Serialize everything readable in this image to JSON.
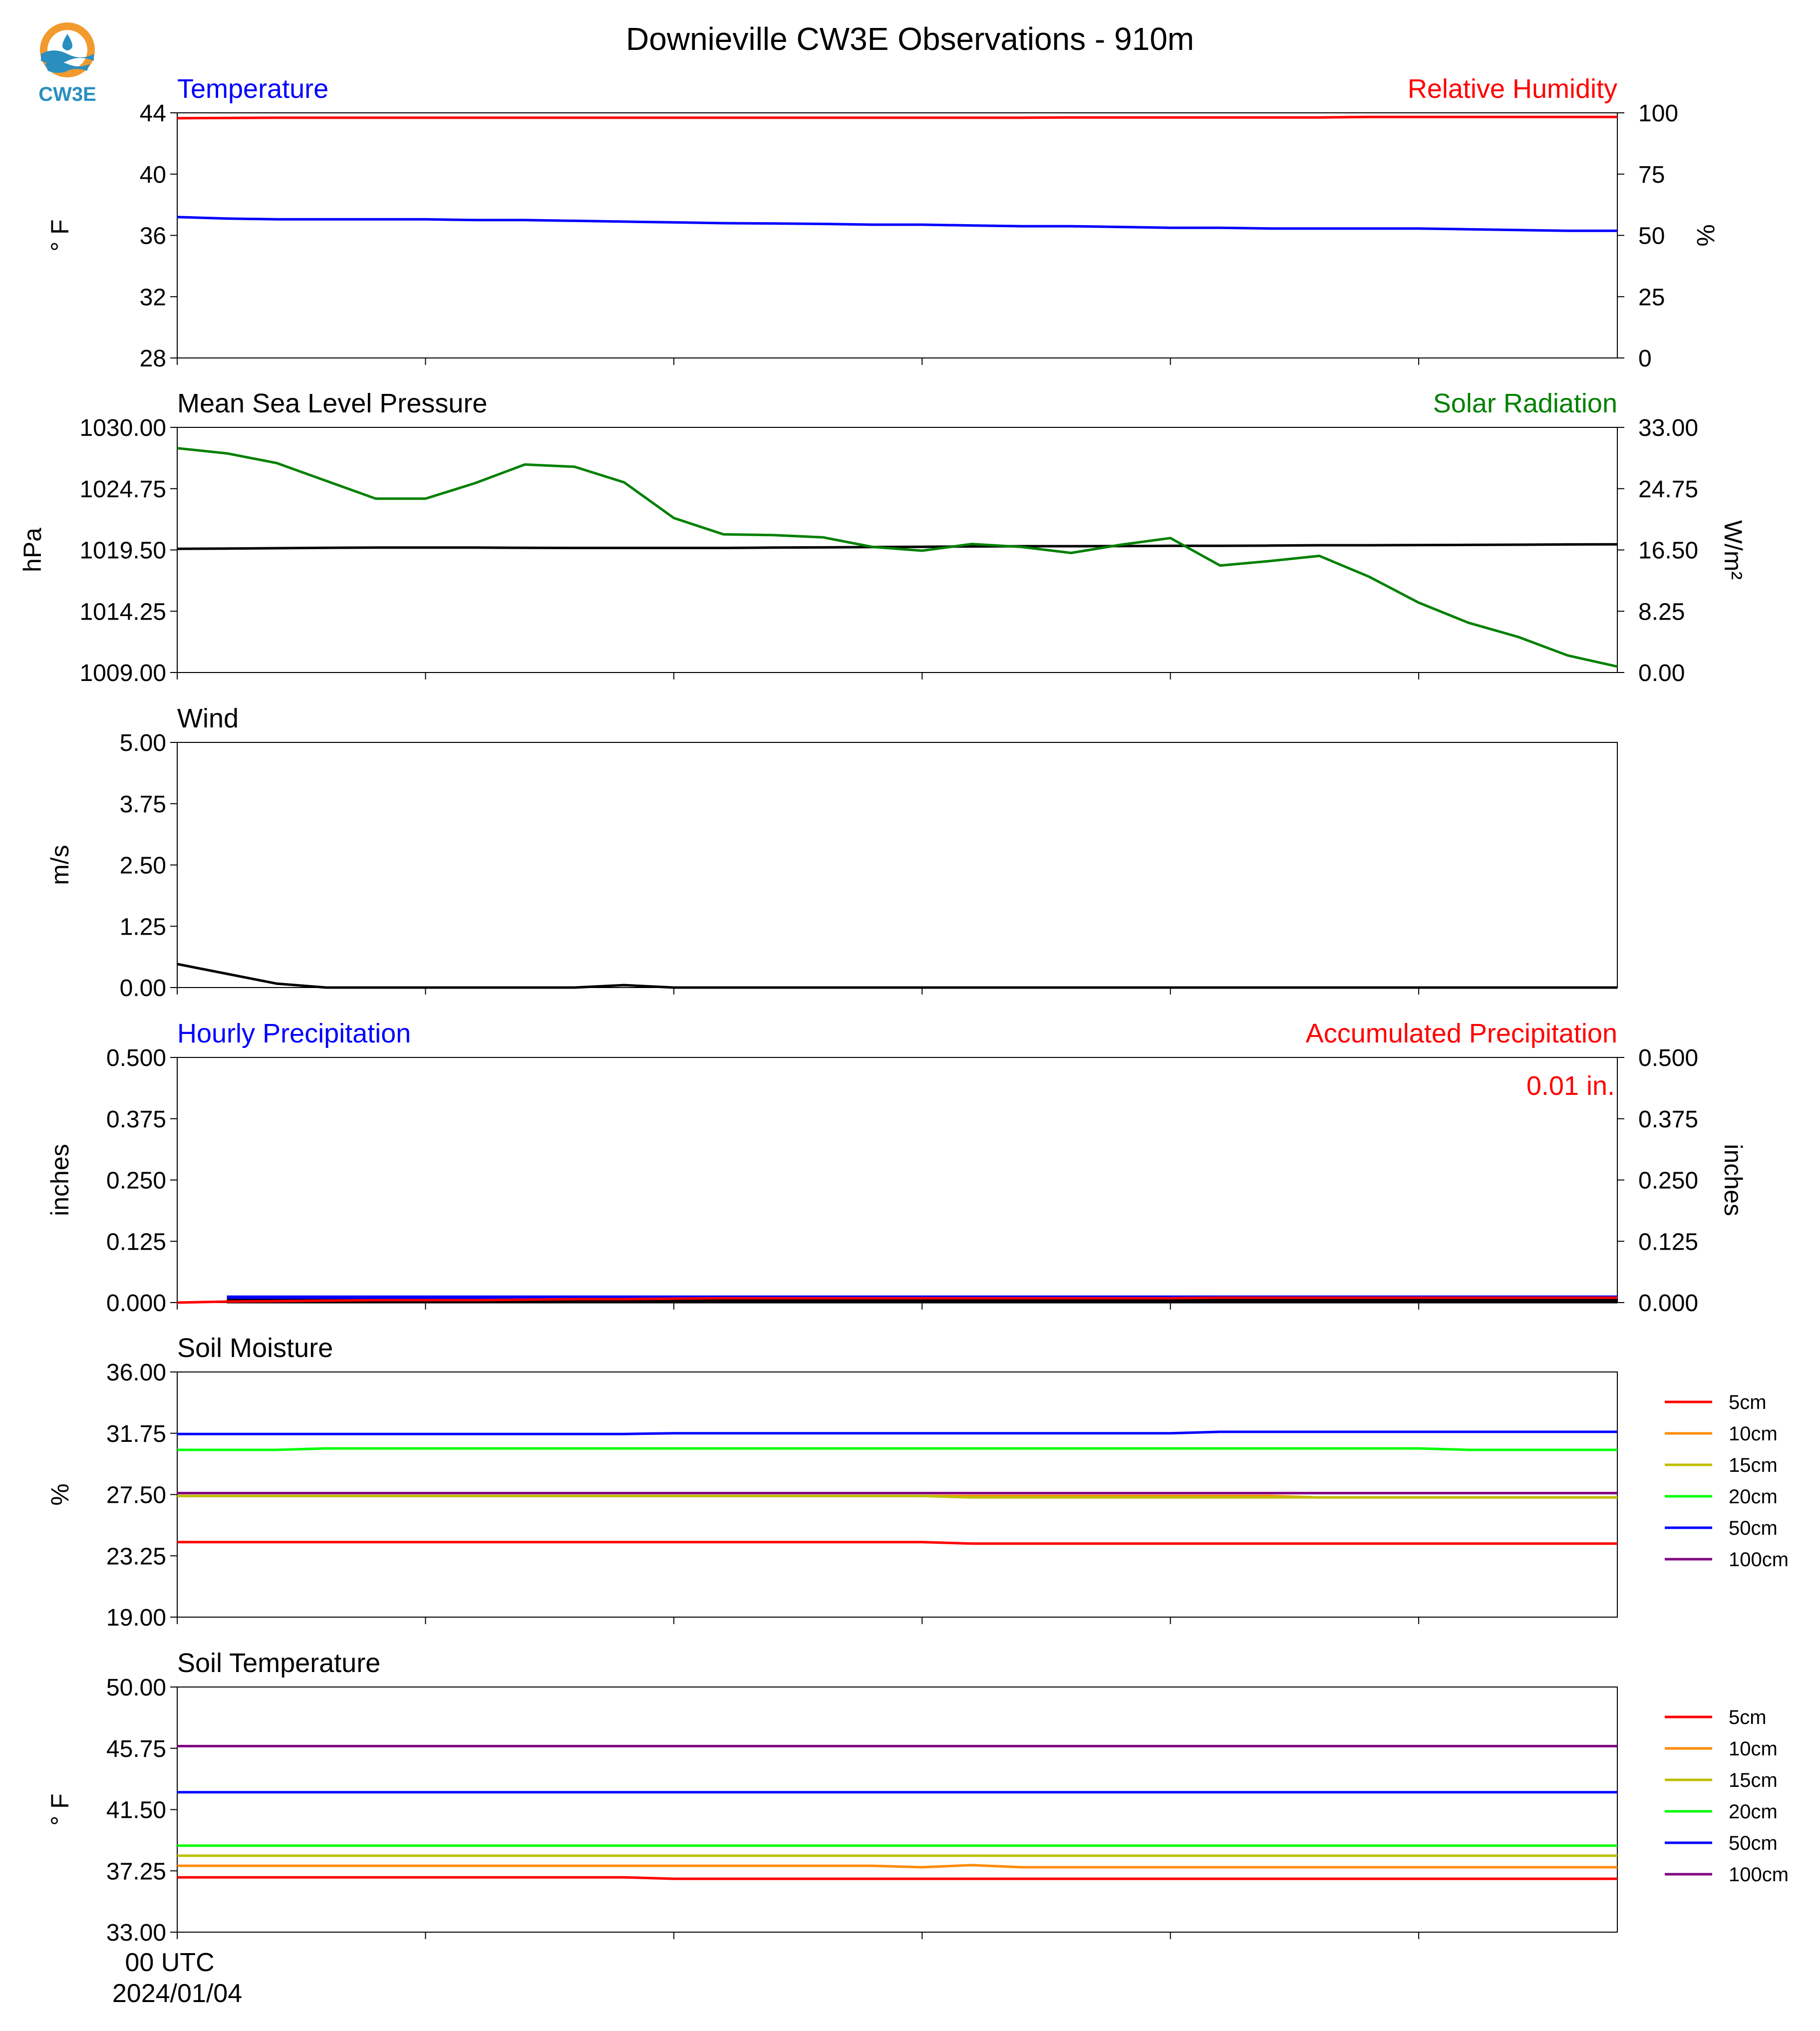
{
  "title": "Downieville CW3E Observations - 910m",
  "logo": {
    "text": "CW3E",
    "color": "#2a8fbf",
    "accent": "#f29a2e"
  },
  "chart_data": [
    {
      "type": "line",
      "panel": "temperature",
      "title_left": "Temperature",
      "title_right": "Relative Humidity",
      "ylabel": "° F",
      "ylabel_right": "%",
      "ylim": [
        28,
        44
      ],
      "ylim_right": [
        0,
        100
      ],
      "yticks": [
        "28",
        "32",
        "36",
        "40",
        "44"
      ],
      "yticks_right": [
        "0",
        "25",
        "50",
        "75",
        "100"
      ],
      "x": [
        0,
        1,
        2,
        3,
        4,
        5,
        6,
        7,
        8,
        9,
        10,
        11,
        12,
        13,
        14,
        15,
        16,
        17,
        18,
        19,
        20,
        21,
        22,
        23,
        24,
        25,
        26,
        27,
        28,
        29
      ],
      "series": [
        {
          "name": "Temperature",
          "axis": "left",
          "color": "#0000ff",
          "values": [
            37.2,
            37.1,
            37.05,
            37.05,
            37.05,
            37.05,
            37.0,
            37.0,
            36.95,
            36.9,
            36.85,
            36.8,
            36.78,
            36.75,
            36.7,
            36.7,
            36.65,
            36.6,
            36.6,
            36.55,
            36.5,
            36.5,
            36.45,
            36.45,
            36.45,
            36.45,
            36.4,
            36.35,
            36.3,
            36.3
          ]
        },
        {
          "name": "Relative Humidity",
          "axis": "right",
          "color": "#ff0000",
          "values": [
            97.8,
            97.9,
            98.0,
            98.0,
            98.0,
            98.0,
            98.0,
            98.0,
            98.0,
            98.0,
            98.0,
            98.0,
            98.0,
            98.0,
            98.0,
            98.0,
            98.0,
            98.0,
            98.1,
            98.1,
            98.1,
            98.1,
            98.1,
            98.1,
            98.3,
            98.3,
            98.3,
            98.3,
            98.3,
            98.3
          ]
        }
      ]
    },
    {
      "type": "line",
      "panel": "pressure",
      "title_left": "Mean Sea Level Pressure",
      "title_right": "Solar Radiation",
      "ylabel": "hPa",
      "ylabel_right": "W/m²",
      "ylim": [
        1009,
        1030
      ],
      "ylim_right": [
        0,
        33
      ],
      "yticks": [
        "1009.00",
        "1014.25",
        "1019.50",
        "1024.75",
        "1030.00"
      ],
      "yticks_right": [
        "0.00",
        "8.25",
        "16.50",
        "24.75",
        "33.00"
      ],
      "x": [
        0,
        1,
        2,
        3,
        4,
        5,
        6,
        7,
        8,
        9,
        10,
        11,
        12,
        13,
        14,
        15,
        16,
        17,
        18,
        19,
        20,
        21,
        22,
        23,
        24,
        25,
        26,
        27,
        28,
        29
      ],
      "series": [
        {
          "name": "Mean Sea Level Pressure",
          "axis": "left",
          "color": "#000000",
          "values": [
            1019.6,
            1019.62,
            1019.65,
            1019.68,
            1019.7,
            1019.7,
            1019.7,
            1019.68,
            1019.67,
            1019.67,
            1019.67,
            1019.67,
            1019.7,
            1019.72,
            1019.75,
            1019.77,
            1019.8,
            1019.82,
            1019.82,
            1019.83,
            1019.85,
            1019.85,
            1019.87,
            1019.9,
            1019.9,
            1019.92,
            1019.93,
            1019.95,
            1019.97,
            1019.98
          ]
        },
        {
          "name": "Solar Radiation",
          "axis": "right",
          "color": "#008000",
          "values": [
            30.2,
            29.5,
            28.2,
            25.8,
            23.4,
            23.4,
            25.5,
            28.0,
            27.7,
            25.6,
            20.8,
            18.6,
            18.5,
            18.2,
            16.9,
            16.4,
            17.3,
            16.9,
            16.1,
            17.2,
            18.1,
            14.4,
            15.0,
            15.7,
            12.9,
            9.4,
            6.7,
            4.8,
            2.3,
            0.8
          ]
        }
      ]
    },
    {
      "type": "line",
      "panel": "wind",
      "title_left": "Wind",
      "ylabel": "m/s",
      "ylim": [
        0,
        5
      ],
      "yticks": [
        "0.00",
        "1.25",
        "2.50",
        "3.75",
        "5.00"
      ],
      "x": [
        0,
        1,
        2,
        3,
        4,
        5,
        6,
        7,
        8,
        9,
        10,
        11,
        12,
        13,
        14,
        15,
        16,
        17,
        18,
        19,
        20,
        21,
        22,
        23,
        24,
        25,
        26,
        27,
        28,
        29
      ],
      "series": [
        {
          "name": "Wind",
          "axis": "left",
          "color": "#000000",
          "values": [
            0.48,
            0.28,
            0.08,
            0.0,
            0.0,
            0.0,
            0.0,
            0.0,
            0.0,
            0.05,
            0.0,
            0.0,
            0.0,
            0.0,
            0.0,
            0.0,
            0.0,
            0.0,
            0.0,
            0.0,
            0.0,
            0.0,
            0.0,
            0.0,
            0.0,
            0.0,
            0.0,
            0.0,
            0.0,
            0.0
          ]
        }
      ]
    },
    {
      "type": "line",
      "panel": "precipitation",
      "title_left": "Hourly Precipitation",
      "title_right": "Accumulated Precipitation",
      "annotation": "0.01 in.",
      "ylabel": "inches",
      "ylabel_right": "inches",
      "ylim": [
        0,
        0.5
      ],
      "ylim_right": [
        0,
        0.5
      ],
      "yticks": [
        "0.000",
        "0.125",
        "0.250",
        "0.375",
        "0.500"
      ],
      "yticks_right": [
        "0.000",
        "0.125",
        "0.250",
        "0.375",
        "0.500"
      ],
      "x": [
        0,
        1,
        2,
        3,
        4,
        5,
        6,
        7,
        8,
        9,
        10,
        11,
        12,
        13,
        14,
        15,
        16,
        17,
        18,
        19,
        20,
        21,
        22,
        23,
        24,
        25,
        26,
        27,
        28,
        29
      ],
      "series": [
        {
          "name": "Hourly Precipitation",
          "axis": "left",
          "color": "#0000ff",
          "values": [
            0,
            0.01,
            0.01,
            0.01,
            0.01,
            0.01,
            0.01,
            0.01,
            0.01,
            0.01,
            0.01,
            0.01,
            0.01,
            0.01,
            0.01,
            0.01,
            0.01,
            0.01,
            0.01,
            0.01,
            0.01,
            0.01,
            0.01,
            0.01,
            0.01,
            0.01,
            0.01,
            0.01,
            0.01,
            0.01
          ]
        },
        {
          "name": "Hourly Precipitation (zero)",
          "axis": "left",
          "color": "#000000",
          "values": [
            0,
            0.003,
            0.003,
            0.003,
            0.003,
            0.003,
            0.003,
            0.003,
            0.003,
            0.003,
            0.003,
            0.003,
            0.003,
            0.003,
            0.003,
            0.003,
            0.003,
            0.003,
            0.003,
            0.003,
            0.003,
            0.003,
            0.003,
            0.003,
            0.003,
            0.003,
            0.003,
            0.003,
            0.003,
            0.003
          ]
        },
        {
          "name": "Accumulated Precipitation",
          "axis": "right",
          "color": "#ff0000",
          "values": [
            0,
            0.002,
            0.003,
            0.004,
            0.005,
            0.005,
            0.005,
            0.006,
            0.007,
            0.007,
            0.008,
            0.009,
            0.009,
            0.009,
            0.009,
            0.009,
            0.009,
            0.009,
            0.009,
            0.009,
            0.009,
            0.01,
            0.01,
            0.01,
            0.01,
            0.01,
            0.01,
            0.01,
            0.01,
            0.01
          ]
        }
      ]
    },
    {
      "type": "line",
      "panel": "soil_moisture",
      "title_left": "Soil Moisture",
      "ylabel": "%",
      "ylim": [
        19,
        36
      ],
      "yticks": [
        "19.00",
        "23.25",
        "27.50",
        "31.75",
        "36.00"
      ],
      "legend": "right",
      "x": [
        0,
        1,
        2,
        3,
        4,
        5,
        6,
        7,
        8,
        9,
        10,
        11,
        12,
        13,
        14,
        15,
        16,
        17,
        18,
        19,
        20,
        21,
        22,
        23,
        24,
        25,
        26,
        27,
        28,
        29
      ],
      "series": [
        {
          "name": "5cm",
          "color": "#ff0000",
          "values": [
            24.2,
            24.2,
            24.2,
            24.2,
            24.2,
            24.2,
            24.2,
            24.2,
            24.2,
            24.2,
            24.2,
            24.2,
            24.2,
            24.2,
            24.2,
            24.2,
            24.1,
            24.1,
            24.1,
            24.1,
            24.1,
            24.1,
            24.1,
            24.1,
            24.1,
            24.1,
            24.1,
            24.1,
            24.1,
            24.1
          ]
        },
        {
          "name": "10cm",
          "color": "#ff8c00",
          "values": [
            27.4,
            27.4,
            27.4,
            27.4,
            27.4,
            27.4,
            27.4,
            27.4,
            27.4,
            27.4,
            27.4,
            27.4,
            27.4,
            27.4,
            27.4,
            27.4,
            27.4,
            27.4,
            27.4,
            27.4,
            27.4,
            27.4,
            27.4,
            27.3,
            27.3,
            27.3,
            27.3,
            27.3,
            27.3,
            27.3
          ]
        },
        {
          "name": "15cm",
          "color": "#bfbf00",
          "values": [
            27.4,
            27.4,
            27.4,
            27.4,
            27.4,
            27.4,
            27.4,
            27.4,
            27.4,
            27.4,
            27.4,
            27.4,
            27.4,
            27.4,
            27.4,
            27.4,
            27.3,
            27.3,
            27.3,
            27.3,
            27.3,
            27.3,
            27.3,
            27.3,
            27.3,
            27.3,
            27.3,
            27.3,
            27.3,
            27.3
          ]
        },
        {
          "name": "20cm",
          "color": "#00ff00",
          "values": [
            30.6,
            30.6,
            30.6,
            30.7,
            30.7,
            30.7,
            30.7,
            30.7,
            30.7,
            30.7,
            30.7,
            30.7,
            30.7,
            30.7,
            30.7,
            30.7,
            30.7,
            30.7,
            30.7,
            30.7,
            30.7,
            30.7,
            30.7,
            30.7,
            30.7,
            30.7,
            30.6,
            30.6,
            30.6,
            30.6
          ]
        },
        {
          "name": "50cm",
          "color": "#0000ff",
          "values": [
            31.7,
            31.7,
            31.7,
            31.7,
            31.7,
            31.7,
            31.7,
            31.7,
            31.7,
            31.7,
            31.75,
            31.75,
            31.75,
            31.75,
            31.75,
            31.75,
            31.75,
            31.75,
            31.75,
            31.75,
            31.75,
            31.85,
            31.85,
            31.85,
            31.85,
            31.85,
            31.85,
            31.85,
            31.85,
            31.85
          ]
        },
        {
          "name": "100cm",
          "color": "#800080",
          "values": [
            27.6,
            27.6,
            27.6,
            27.6,
            27.6,
            27.6,
            27.6,
            27.6,
            27.6,
            27.6,
            27.6,
            27.6,
            27.6,
            27.6,
            27.6,
            27.6,
            27.6,
            27.6,
            27.6,
            27.6,
            27.6,
            27.6,
            27.6,
            27.6,
            27.6,
            27.6,
            27.6,
            27.6,
            27.6,
            27.6
          ]
        }
      ]
    },
    {
      "type": "line",
      "panel": "soil_temperature",
      "title_left": "Soil Temperature",
      "ylabel": "° F",
      "ylim": [
        33,
        50
      ],
      "yticks": [
        "33.00",
        "37.25",
        "41.50",
        "45.75",
        "50.00"
      ],
      "legend": "right",
      "x": [
        0,
        1,
        2,
        3,
        4,
        5,
        6,
        7,
        8,
        9,
        10,
        11,
        12,
        13,
        14,
        15,
        16,
        17,
        18,
        19,
        20,
        21,
        22,
        23,
        24,
        25,
        26,
        27,
        28,
        29
      ],
      "series": [
        {
          "name": "5cm",
          "color": "#ff0000",
          "values": [
            36.8,
            36.8,
            36.8,
            36.8,
            36.8,
            36.8,
            36.8,
            36.8,
            36.8,
            36.8,
            36.7,
            36.7,
            36.7,
            36.7,
            36.7,
            36.7,
            36.7,
            36.7,
            36.7,
            36.7,
            36.7,
            36.7,
            36.7,
            36.7,
            36.7,
            36.7,
            36.7,
            36.7,
            36.7,
            36.7
          ]
        },
        {
          "name": "10cm",
          "color": "#ff8c00",
          "values": [
            37.6,
            37.6,
            37.6,
            37.6,
            37.6,
            37.6,
            37.6,
            37.6,
            37.6,
            37.6,
            37.6,
            37.6,
            37.6,
            37.6,
            37.6,
            37.5,
            37.65,
            37.5,
            37.5,
            37.5,
            37.5,
            37.5,
            37.5,
            37.5,
            37.5,
            37.5,
            37.5,
            37.5,
            37.5,
            37.5
          ]
        },
        {
          "name": "15cm",
          "color": "#bfbf00",
          "values": [
            38.3,
            38.3,
            38.3,
            38.3,
            38.3,
            38.3,
            38.3,
            38.3,
            38.3,
            38.3,
            38.3,
            38.3,
            38.3,
            38.3,
            38.3,
            38.3,
            38.3,
            38.3,
            38.3,
            38.3,
            38.3,
            38.3,
            38.3,
            38.3,
            38.3,
            38.3,
            38.3,
            38.3,
            38.3,
            38.3
          ]
        },
        {
          "name": "20cm",
          "color": "#00ff00",
          "values": [
            39.0,
            39.0,
            39.0,
            39.0,
            39.0,
            39.0,
            39.0,
            39.0,
            39.0,
            39.0,
            39.0,
            39.0,
            39.0,
            39.0,
            39.0,
            39.0,
            39.0,
            39.0,
            39.0,
            39.0,
            39.0,
            39.0,
            39.0,
            39.0,
            39.0,
            39.0,
            39.0,
            39.0,
            39.0,
            39.0
          ]
        },
        {
          "name": "50cm",
          "color": "#0000ff",
          "values": [
            42.7,
            42.7,
            42.7,
            42.7,
            42.7,
            42.7,
            42.7,
            42.7,
            42.7,
            42.7,
            42.7,
            42.7,
            42.7,
            42.7,
            42.7,
            42.7,
            42.7,
            42.7,
            42.7,
            42.7,
            42.7,
            42.7,
            42.7,
            42.7,
            42.7,
            42.7,
            42.7,
            42.7,
            42.7,
            42.7
          ]
        },
        {
          "name": "100cm",
          "color": "#800080",
          "values": [
            45.9,
            45.9,
            45.9,
            45.9,
            45.9,
            45.9,
            45.9,
            45.9,
            45.9,
            45.9,
            45.9,
            45.9,
            45.9,
            45.9,
            45.9,
            45.9,
            45.9,
            45.9,
            45.9,
            45.9,
            45.9,
            45.9,
            45.9,
            45.9,
            45.9,
            45.9,
            45.9,
            45.9,
            45.9,
            45.9
          ]
        }
      ]
    }
  ],
  "xaxis": {
    "xlim": [
      0,
      29
    ],
    "ticks": [
      0,
      5,
      10,
      15,
      20,
      25
    ],
    "first_label_line1": "00 UTC",
    "first_label_line2": "2024/01/04"
  }
}
